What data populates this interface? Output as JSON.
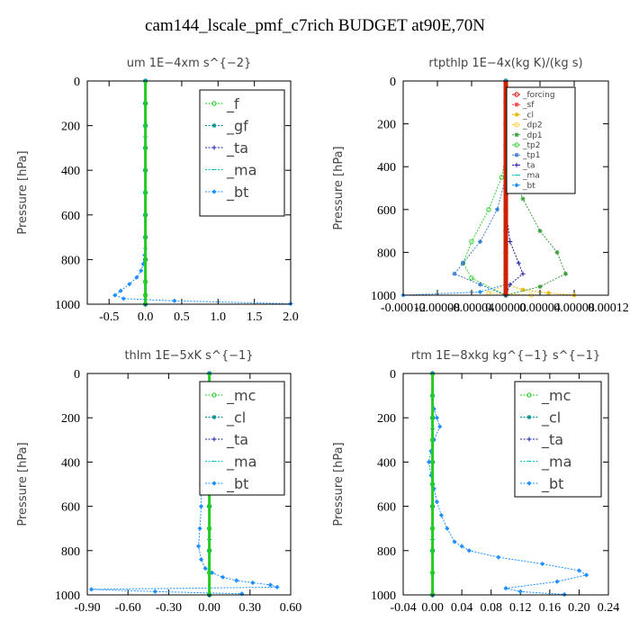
{
  "title": "cam144_lscale_pmf_c7rich  BUDGET at90E,70N",
  "chart_data": [
    {
      "type": "line",
      "title": "um   1E−4xm s^{−2}",
      "ylabel": "Pressure [hPa]",
      "xlim": [
        -0.8,
        2.0
      ],
      "ylim": [
        1000,
        0
      ],
      "xticks": [
        "-0.5",
        "0.0",
        "0.5",
        "1.0",
        "1.5",
        "2.0"
      ],
      "xtick_values": [
        -0.5,
        0.0,
        0.5,
        1.0,
        1.5,
        2.0
      ],
      "yticks": [
        "0",
        "200",
        "400",
        "600",
        "800",
        "1000"
      ],
      "legend": {
        "position": "top-right",
        "style": "large"
      },
      "series": [
        {
          "name": "_f",
          "color": "#22cc22",
          "marker": "o",
          "x": [
            0,
            0,
            0,
            0,
            0,
            0,
            0,
            0,
            0,
            0,
            0,
            0
          ],
          "y": [
            0,
            100,
            200,
            300,
            400,
            500,
            600,
            700,
            800,
            900,
            960,
            1000
          ]
        },
        {
          "name": "_gf",
          "color": "#008b8b",
          "marker": "*",
          "x": [
            0,
            0,
            0,
            0,
            0,
            0,
            0,
            0,
            0,
            0
          ],
          "y": [
            0,
            100,
            200,
            300,
            400,
            500,
            600,
            700,
            800,
            1000
          ]
        },
        {
          "name": "_ta",
          "color": "#1a1aaa",
          "marker": "+",
          "x": [
            0,
            0,
            0,
            0,
            0
          ],
          "y": [
            0,
            250,
            500,
            750,
            1000
          ]
        },
        {
          "name": "_ma",
          "color": "#00c0c0",
          "marker": "-",
          "x": [
            0,
            0,
            0,
            0,
            0
          ],
          "y": [
            0,
            250,
            500,
            750,
            1000
          ]
        },
        {
          "name": "_bt",
          "color": "#1e90ff",
          "marker": "d",
          "x": [
            0.0,
            0.0,
            0.0,
            0.0,
            0.0,
            -0.01,
            -0.03,
            -0.06,
            -0.12,
            -0.22,
            -0.34,
            -0.42,
            -0.3,
            0.4,
            2.0
          ],
          "y": [
            0,
            200,
            400,
            600,
            700,
            780,
            820,
            850,
            880,
            910,
            940,
            960,
            975,
            985,
            998
          ]
        }
      ]
    },
    {
      "type": "line",
      "title": "rtpthlp   1E−4x(kg K)/(kg s)",
      "ylabel": "Pressure [hPa]",
      "xlim": [
        -0.00012,
        0.00012
      ],
      "ylim": [
        1000,
        0
      ],
      "xticks": [
        "-0.00012",
        "-0.00008",
        "-0.00004",
        "0.00000",
        "0.00004",
        "0.00008",
        "0.00012"
      ],
      "xtick_values": [
        -0.00012,
        -8e-05,
        -4e-05,
        0.0,
        4e-05,
        8e-05,
        0.00012
      ],
      "yticks": [
        "0",
        "200",
        "400",
        "600",
        "800",
        "1000"
      ],
      "legend": {
        "position": "top-right",
        "style": "small"
      },
      "series": [
        {
          "name": "_forcing",
          "color": "#cc0000",
          "marker": "o",
          "x": [
            0,
            0,
            0,
            0,
            0,
            0,
            0,
            0,
            0,
            0,
            0
          ],
          "y": [
            0,
            100,
            200,
            300,
            400,
            500,
            600,
            700,
            800,
            900,
            1000
          ]
        },
        {
          "name": "_sf",
          "color": "#ff4040",
          "marker": "*",
          "x": [
            0,
            0,
            0,
            0,
            0,
            0,
            0,
            0,
            0,
            0,
            0
          ],
          "y": [
            0,
            100,
            200,
            300,
            400,
            500,
            600,
            700,
            800,
            900,
            1000
          ]
        },
        {
          "name": "_cl",
          "color": "#e6b800",
          "marker": "*",
          "x": [
            0,
            0,
            0,
            0,
            0,
            0,
            2e-05,
            5e-05,
            8e-05
          ],
          "y": [
            0,
            200,
            400,
            600,
            800,
            950,
            975,
            990,
            1000
          ]
        },
        {
          "name": "_dp2",
          "color": "#ffcc33",
          "marker": "o",
          "x": [
            0,
            0,
            0,
            0,
            0,
            0,
            -2e-05,
            3e-05
          ],
          "y": [
            0,
            200,
            400,
            600,
            800,
            950,
            990,
            1000
          ]
        },
        {
          "name": "_dp1",
          "color": "#3aa03a",
          "marker": "*",
          "x": [
            0,
            0,
            5e-06,
            2e-05,
            4e-05,
            6e-05,
            7e-05,
            4e-05,
            0.0
          ],
          "y": [
            0,
            300,
            400,
            550,
            700,
            800,
            900,
            960,
            1000
          ]
        },
        {
          "name": "_tp2",
          "color": "#33cc33",
          "marker": "o",
          "x": [
            0,
            0,
            -5e-06,
            -2e-05,
            -4e-05,
            -5e-05,
            -4e-05,
            0.0
          ],
          "y": [
            0,
            350,
            450,
            600,
            750,
            850,
            920,
            1000
          ]
        },
        {
          "name": "_tp1",
          "color": "#3a7fd0",
          "marker": "*",
          "x": [
            0,
            0,
            -1e-05,
            -3e-05,
            -5e-05,
            -6e-05,
            -3e-05,
            0.0
          ],
          "y": [
            0,
            450,
            600,
            750,
            850,
            900,
            950,
            1000
          ]
        },
        {
          "name": "_ta",
          "color": "#1a1aaa",
          "marker": "+",
          "x": [
            0,
            0,
            5e-06,
            0.0,
            5e-06,
            1.5e-05,
            2e-05,
            5e-06,
            0.0
          ],
          "y": [
            0,
            350,
            450,
            600,
            750,
            850,
            900,
            950,
            1000
          ]
        },
        {
          "name": "_ma",
          "color": "#00c0c0",
          "marker": "-",
          "x": [
            0,
            0,
            0
          ],
          "y": [
            0,
            500,
            1000
          ]
        },
        {
          "name": "_bt",
          "color": "#1e90ff",
          "marker": "d",
          "x": [
            0,
            0,
            0,
            0,
            0,
            0,
            -3e-05,
            -0.00012
          ],
          "y": [
            0,
            200,
            400,
            600,
            800,
            950,
            985,
            1000
          ]
        }
      ]
    },
    {
      "type": "line",
      "title": "thlm   1E−5xK  s^{−1}",
      "ylabel": "Pressure [hPa]",
      "xlim": [
        -0.9,
        0.6
      ],
      "ylim": [
        1000,
        0
      ],
      "xticks": [
        "-0.90",
        "-0.60",
        "-0.30",
        "0.00",
        "0.30",
        "0.60"
      ],
      "xtick_values": [
        -0.9,
        -0.6,
        -0.3,
        0.0,
        0.3,
        0.6
      ],
      "yticks": [
        "0",
        "200",
        "400",
        "600",
        "800",
        "1000"
      ],
      "legend": {
        "position": "top-right",
        "style": "large"
      },
      "series": [
        {
          "name": "_mc",
          "color": "#22cc22",
          "marker": "o",
          "x": [
            0,
            0,
            0,
            0,
            0,
            0,
            0,
            0,
            0,
            0,
            0
          ],
          "y": [
            0,
            100,
            200,
            300,
            400,
            500,
            600,
            700,
            800,
            900,
            1000
          ]
        },
        {
          "name": "_cl",
          "color": "#008b8b",
          "marker": "*",
          "x": [
            0,
            0,
            0,
            0,
            0,
            0
          ],
          "y": [
            0,
            200,
            400,
            600,
            800,
            1000
          ]
        },
        {
          "name": "_ta",
          "color": "#1a1aaa",
          "marker": "+",
          "x": [
            0,
            0,
            0,
            0,
            0
          ],
          "y": [
            0,
            250,
            500,
            750,
            1000
          ]
        },
        {
          "name": "_ma",
          "color": "#00c0c0",
          "marker": "-",
          "x": [
            0,
            0,
            0,
            0,
            0
          ],
          "y": [
            0,
            250,
            500,
            750,
            1000
          ]
        },
        {
          "name": "_bt",
          "color": "#1e90ff",
          "marker": "d",
          "x": [
            0.0,
            0.0,
            0.01,
            0.02,
            0.01,
            -0.02,
            -0.04,
            -0.05,
            -0.06,
            -0.06,
            -0.07,
            -0.08,
            -0.06,
            -0.03,
            0.02,
            0.1,
            0.2,
            0.32,
            0.45,
            0.5,
            -0.87,
            -0.4,
            0.24
          ],
          "y": [
            0,
            100,
            150,
            200,
            250,
            300,
            350,
            400,
            500,
            600,
            700,
            780,
            840,
            880,
            900,
            920,
            935,
            945,
            955,
            965,
            975,
            985,
            995
          ]
        }
      ]
    },
    {
      "type": "line",
      "title": "rtm   1E−8xkg  kg^{−1} s^{−1}",
      "ylabel": "Pressure [hPa]",
      "xlim": [
        -0.04,
        0.24
      ],
      "ylim": [
        1000,
        0
      ],
      "xticks": [
        "-0.04",
        "0.00",
        "0.04",
        "0.08",
        "0.12",
        "0.16",
        "0.20",
        "0.24"
      ],
      "xtick_values": [
        -0.04,
        0.0,
        0.04,
        0.08,
        0.12,
        0.16,
        0.2,
        0.24
      ],
      "yticks": [
        "0",
        "200",
        "400",
        "600",
        "800",
        "1000"
      ],
      "legend": {
        "position": "top-right",
        "style": "large"
      },
      "series": [
        {
          "name": "_mc",
          "color": "#22cc22",
          "marker": "o",
          "x": [
            0,
            0,
            0,
            0,
            0,
            0,
            0,
            0,
            0,
            0,
            0
          ],
          "y": [
            0,
            100,
            200,
            300,
            400,
            500,
            600,
            700,
            800,
            900,
            1000
          ]
        },
        {
          "name": "_cl",
          "color": "#008b8b",
          "marker": "*",
          "x": [
            0,
            0,
            0,
            0,
            0,
            0
          ],
          "y": [
            0,
            200,
            400,
            600,
            800,
            1000
          ]
        },
        {
          "name": "_ta",
          "color": "#1a1aaa",
          "marker": "+",
          "x": [
            0,
            0,
            0,
            0,
            0
          ],
          "y": [
            0,
            250,
            500,
            750,
            1000
          ]
        },
        {
          "name": "_ma",
          "color": "#00c0c0",
          "marker": "-",
          "x": [
            0,
            0,
            0,
            0,
            0
          ],
          "y": [
            0,
            250,
            500,
            750,
            1000
          ]
        },
        {
          "name": "_bt",
          "color": "#1e90ff",
          "marker": "d",
          "x": [
            0.0,
            0.0,
            0.002,
            0.006,
            0.01,
            0.002,
            -0.002,
            -0.005,
            -0.002,
            0.002,
            0.006,
            0.012,
            0.02,
            0.03,
            0.04,
            0.05,
            0.09,
            0.15,
            0.2,
            0.21,
            0.17,
            0.1,
            0.12,
            0.18
          ],
          "y": [
            0,
            100,
            160,
            200,
            240,
            300,
            350,
            400,
            460,
            520,
            580,
            640,
            700,
            760,
            780,
            800,
            830,
            860,
            890,
            910,
            940,
            970,
            985,
            998
          ]
        }
      ]
    }
  ]
}
